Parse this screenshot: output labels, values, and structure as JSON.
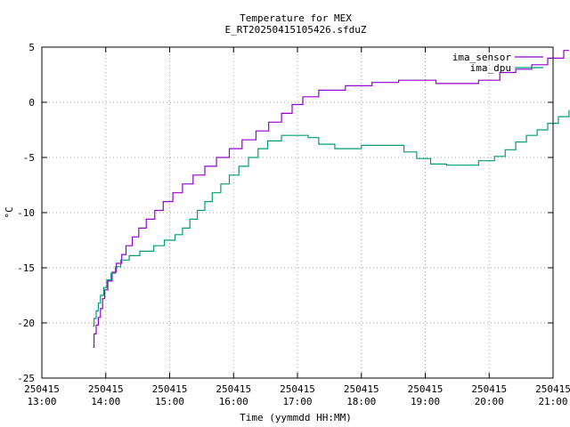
{
  "chart_data": {
    "type": "line",
    "title": "Temperature for MEX",
    "subtitle": "E_RT20250415105426.sfduZ",
    "xlabel": "Time (yymmdd HH:MM)",
    "ylabel": "°C",
    "xlim": [
      "250415 13:00",
      "250415 21:00"
    ],
    "ylim": [
      -25,
      5
    ],
    "grid": true,
    "legend_position": "top-right",
    "x_ticks": [
      {
        "date": "250415",
        "time": "13:00"
      },
      {
        "date": "250415",
        "time": "14:00"
      },
      {
        "date": "250415",
        "time": "15:00"
      },
      {
        "date": "250415",
        "time": "16:00"
      },
      {
        "date": "250415",
        "time": "17:00"
      },
      {
        "date": "250415",
        "time": "18:00"
      },
      {
        "date": "250415",
        "time": "19:00"
      },
      {
        "date": "250415",
        "time": "20:00"
      },
      {
        "date": "250415",
        "time": "21:00"
      }
    ],
    "y_ticks": [
      "5",
      "0",
      "-5",
      "-10",
      "-15",
      "-20",
      "-25"
    ],
    "series": [
      {
        "name": "ima_sensor",
        "color": "#9400d3",
        "style": "step",
        "points": [
          [
            "13:48",
            -22.2
          ],
          [
            "13:49",
            -21.0
          ],
          [
            "13:51",
            -20.2
          ],
          [
            "13:53",
            -19.5
          ],
          [
            "13:55",
            -18.7
          ],
          [
            "13:57",
            -17.8
          ],
          [
            "13:59",
            -17.0
          ],
          [
            "14:02",
            -16.2
          ],
          [
            "14:06",
            -15.4
          ],
          [
            "14:10",
            -14.6
          ],
          [
            "14:15",
            -13.8
          ],
          [
            "14:19",
            -13.0
          ],
          [
            "14:25",
            -12.2
          ],
          [
            "14:31",
            -11.4
          ],
          [
            "14:38",
            -10.6
          ],
          [
            "14:46",
            -9.8
          ],
          [
            "14:54",
            -9.0
          ],
          [
            "15:03",
            -8.2
          ],
          [
            "15:12",
            -7.4
          ],
          [
            "15:22",
            -6.6
          ],
          [
            "15:33",
            -5.8
          ],
          [
            "15:44",
            -5.0
          ],
          [
            "15:56",
            -4.2
          ],
          [
            "16:08",
            -3.4
          ],
          [
            "16:21",
            -2.6
          ],
          [
            "16:33",
            -1.8
          ],
          [
            "16:45",
            -1.0
          ],
          [
            "16:55",
            -0.2
          ],
          [
            "17:05",
            0.5
          ],
          [
            "17:20",
            1.1
          ],
          [
            "17:45",
            1.5
          ],
          [
            "18:10",
            1.8
          ],
          [
            "18:35",
            2.0
          ],
          [
            "19:10",
            1.7
          ],
          [
            "19:35",
            1.7
          ],
          [
            "19:50",
            2.0
          ],
          [
            "20:10",
            2.7
          ],
          [
            "20:25",
            3.0
          ],
          [
            "20:40",
            3.4
          ],
          [
            "20:55",
            4.0
          ],
          [
            "21:10",
            4.7
          ],
          [
            "21:15",
            4.7
          ]
        ]
      },
      {
        "name": "ima_dpu",
        "color": "#009e73",
        "style": "step",
        "points": [
          [
            "13:48",
            -20.3
          ],
          [
            "13:49",
            -19.6
          ],
          [
            "13:51",
            -18.9
          ],
          [
            "13:53",
            -18.2
          ],
          [
            "13:55",
            -17.5
          ],
          [
            "13:58",
            -16.8
          ],
          [
            "14:01",
            -16.1
          ],
          [
            "14:05",
            -15.5
          ],
          [
            "14:09",
            -14.9
          ],
          [
            "14:14",
            -14.3
          ],
          [
            "14:22",
            -13.9
          ],
          [
            "14:32",
            -13.5
          ],
          [
            "14:45",
            -13.0
          ],
          [
            "14:55",
            -12.5
          ],
          [
            "15:05",
            -12.0
          ],
          [
            "15:12",
            -11.4
          ],
          [
            "15:19",
            -10.6
          ],
          [
            "15:26",
            -9.8
          ],
          [
            "15:33",
            -9.0
          ],
          [
            "15:40",
            -8.2
          ],
          [
            "15:48",
            -7.4
          ],
          [
            "15:56",
            -6.6
          ],
          [
            "16:05",
            -5.8
          ],
          [
            "16:14",
            -5.0
          ],
          [
            "16:23",
            -4.2
          ],
          [
            "16:32",
            -3.5
          ],
          [
            "16:45",
            -3.0
          ],
          [
            "17:10",
            -3.2
          ],
          [
            "17:20",
            -3.8
          ],
          [
            "17:35",
            -4.2
          ],
          [
            "18:00",
            -3.9
          ],
          [
            "18:25",
            -3.9
          ],
          [
            "18:40",
            -4.5
          ],
          [
            "18:52",
            -5.1
          ],
          [
            "19:05",
            -5.6
          ],
          [
            "19:20",
            -5.7
          ],
          [
            "19:50",
            -5.3
          ],
          [
            "20:05",
            -4.9
          ],
          [
            "20:15",
            -4.3
          ],
          [
            "20:25",
            -3.6
          ],
          [
            "20:35",
            -3.0
          ],
          [
            "20:45",
            -2.5
          ],
          [
            "20:55",
            -1.9
          ],
          [
            "21:05",
            -1.3
          ],
          [
            "21:15",
            -0.7
          ]
        ]
      }
    ]
  }
}
